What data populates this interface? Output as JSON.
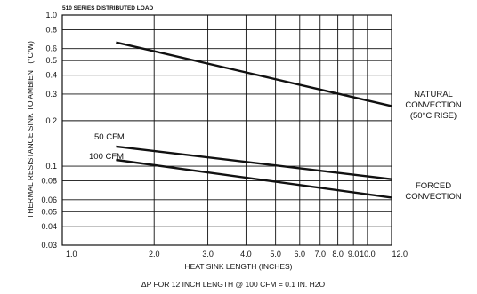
{
  "chart_data": {
    "type": "line",
    "title": "510 SERIES DISTRIBUTED LOAD",
    "xlabel": "HEAT SINK LENGTH (INCHES)",
    "ylabel": "THERMAL RESISTANCE SINK TO AMBIENT (°C/W)",
    "footnote": "ΔP FOR 12 INCH LENGTH @ 100 CFM = 0.1 IN. H2O",
    "x_scale": "log",
    "y_scale": "log",
    "xlim": [
      1.0,
      12.0
    ],
    "ylim": [
      0.03,
      1.0
    ],
    "x_ticks": [
      1,
      2,
      3,
      4,
      5,
      6,
      7,
      8,
      9,
      10,
      12
    ],
    "x_tick_labels": [
      "1.0",
      "2.0",
      "3.0",
      "4.0",
      "5.0",
      "6.0",
      "7.0",
      "8.0",
      "9.0",
      "10.0",
      "12.0"
    ],
    "y_ticks": [
      1.0,
      0.8,
      0.6,
      0.5,
      0.4,
      0.3,
      0.2,
      0.1,
      0.08,
      0.06,
      0.05,
      0.04,
      0.03
    ],
    "y_tick_labels": [
      "1.0",
      "0.8",
      "0.6",
      "0.5",
      "0.4",
      "0.3",
      "0.2",
      "0.1",
      "0.08",
      "0.06",
      "0.05",
      "0.04",
      "0.03"
    ],
    "grid": true,
    "series": [
      {
        "name": "",
        "x": [
          1.5,
          12.0
        ],
        "y": [
          0.66,
          0.25
        ]
      },
      {
        "name": "50 CFM",
        "x": [
          1.5,
          12.0
        ],
        "y": [
          0.135,
          0.082
        ]
      },
      {
        "name": "100 CFM",
        "x": [
          1.5,
          12.0
        ],
        "y": [
          0.11,
          0.062
        ]
      }
    ],
    "annotations": {
      "natural": [
        "NATURAL",
        "CONVECTION",
        "(50°C RISE)"
      ],
      "forced": [
        "FORCED",
        "CONVECTION"
      ]
    }
  }
}
